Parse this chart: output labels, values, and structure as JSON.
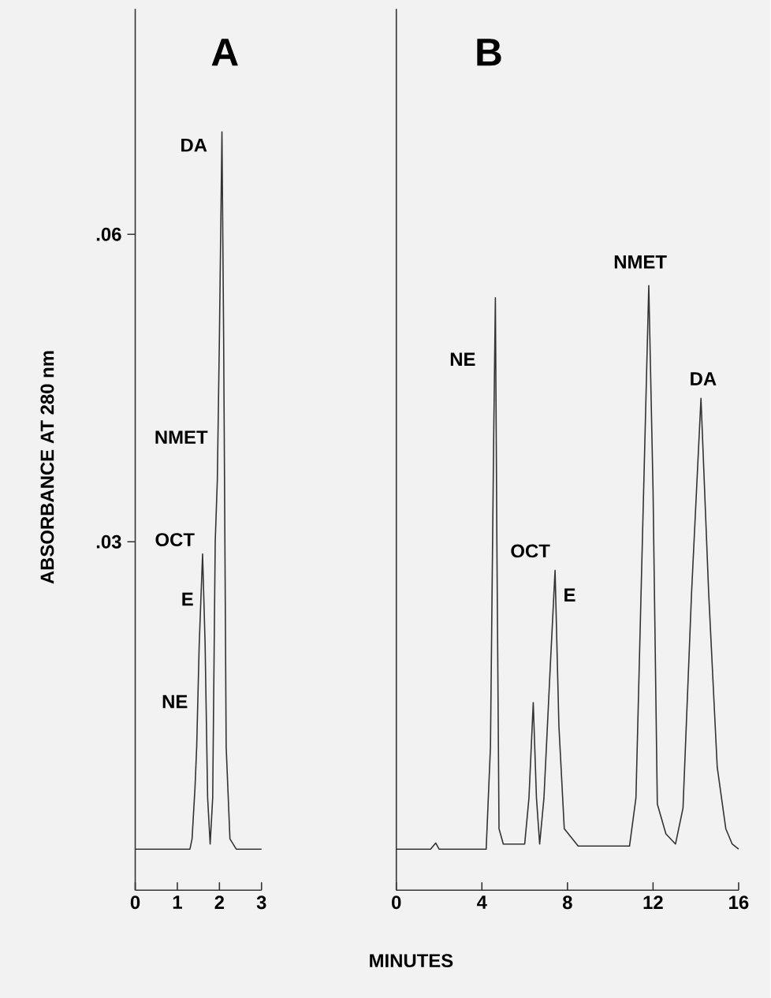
{
  "chart_data": [
    {
      "type": "line",
      "title": "A",
      "ylabel": "ABSORBANCE AT 280 nm",
      "x": [
        0,
        1.3,
        1.35,
        1.42,
        1.46,
        1.52,
        1.6,
        1.66,
        1.72,
        1.78,
        1.84,
        1.9,
        1.95,
        2.0,
        2.06,
        2.1,
        2.16,
        2.25,
        2.4,
        3
      ],
      "series": [
        {
          "color": "#333333",
          "values": [
            0,
            0,
            0.001,
            0.006,
            0.01,
            0.02,
            0.0288,
            0.02,
            0.005,
            0.0005,
            0.005,
            0.03,
            0.036,
            0.05,
            0.07,
            0.05,
            0.01,
            0.001,
            0,
            0
          ]
        }
      ],
      "xlim": [
        0,
        3
      ],
      "xticks": [
        0,
        1,
        2,
        3
      ],
      "ylim": [
        -0.004,
        0.082
      ],
      "yticks": [
        {
          "value": 0.03,
          "label": ".03"
        },
        {
          "value": 0.06,
          "label": ".06"
        }
      ],
      "annotations": [
        "DA",
        "NMET",
        "OCT",
        "E",
        "NE"
      ],
      "grid": false,
      "marker": "none",
      "line_style": "solid"
    },
    {
      "type": "line",
      "title": "B",
      "xlabel": "MINUTES",
      "x": [
        0,
        1.6,
        1.84,
        2.0,
        4.2,
        4.4,
        4.55,
        4.63,
        4.7,
        4.8,
        5.0,
        6.0,
        6.2,
        6.4,
        6.55,
        6.7,
        6.9,
        7.2,
        7.42,
        7.6,
        7.85,
        8.5,
        10.9,
        11.2,
        11.5,
        11.8,
        12.0,
        12.2,
        12.6,
        13.05,
        13.4,
        13.8,
        14.24,
        14.6,
        15.0,
        15.4,
        15.7,
        16
      ],
      "series": [
        {
          "color": "#333333",
          "values": [
            0,
            0,
            0.0006,
            0,
            0,
            0.01,
            0.04,
            0.0538,
            0.03,
            0.002,
            0.0005,
            0.0005,
            0.005,
            0.0143,
            0.005,
            0.0005,
            0.005,
            0.018,
            0.0272,
            0.012,
            0.002,
            0.0003,
            0.0003,
            0.005,
            0.03,
            0.055,
            0.035,
            0.0044,
            0.0015,
            0.0005,
            0.004,
            0.025,
            0.044,
            0.025,
            0.008,
            0.002,
            0.0005,
            0
          ]
        }
      ],
      "xlim": [
        0,
        16
      ],
      "xticks": [
        0,
        4,
        8,
        12,
        16
      ],
      "ylim": [
        -0.004,
        0.082
      ],
      "tick_labels": "x",
      "annotations": [
        "NE",
        "OCT",
        "E",
        "NMET",
        "DA"
      ],
      "grid": false,
      "marker": "none",
      "line_style": "solid"
    }
  ]
}
